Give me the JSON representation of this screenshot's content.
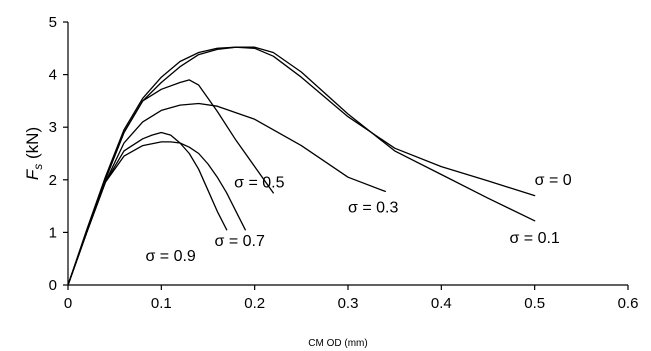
{
  "chart_data": {
    "type": "line",
    "title": "",
    "xlabel": "CM OD (mm)",
    "ylabel": "F",
    "ylabel_subscript": "s",
    "ylabel_unit": " (kN)",
    "xlim": [
      0,
      0.6
    ],
    "ylim": [
      0,
      5
    ],
    "xticks": [
      0,
      0.1,
      0.2,
      0.3,
      0.4,
      0.5,
      0.6
    ],
    "xtick_labels": [
      "0",
      "0.1",
      "0.2",
      "0.3",
      "0.4",
      "0.5",
      "0.6"
    ],
    "yticks": [
      0,
      1,
      2,
      3,
      4,
      5
    ],
    "ytick_labels": [
      "0",
      "1",
      "2",
      "3",
      "4",
      "5"
    ],
    "grid": false,
    "legend": "none",
    "color": "#000000",
    "series": [
      {
        "label": "σ = 0",
        "x": [
          0,
          0.02,
          0.04,
          0.06,
          0.08,
          0.1,
          0.12,
          0.14,
          0.16,
          0.18,
          0.2,
          0.22,
          0.25,
          0.3,
          0.35,
          0.4,
          0.45,
          0.5
        ],
        "y": [
          0,
          1.05,
          2.05,
          2.95,
          3.55,
          3.95,
          4.25,
          4.42,
          4.5,
          4.52,
          4.5,
          4.35,
          3.95,
          3.2,
          2.6,
          2.25,
          1.98,
          1.7
        ]
      },
      {
        "label": "σ = 0.1",
        "x": [
          0,
          0.02,
          0.04,
          0.06,
          0.08,
          0.1,
          0.12,
          0.14,
          0.16,
          0.18,
          0.2,
          0.22,
          0.25,
          0.3,
          0.35,
          0.4,
          0.45,
          0.5
        ],
        "y": [
          0,
          1.0,
          2.0,
          2.9,
          3.5,
          3.85,
          4.15,
          4.38,
          4.48,
          4.52,
          4.52,
          4.42,
          4.05,
          3.25,
          2.55,
          2.1,
          1.65,
          1.22
        ]
      },
      {
        "label": "σ = 0.3",
        "x": [
          0,
          0.02,
          0.04,
          0.06,
          0.08,
          0.1,
          0.12,
          0.14,
          0.16,
          0.2,
          0.25,
          0.3,
          0.34
        ],
        "y": [
          0,
          1.0,
          1.95,
          2.7,
          3.1,
          3.32,
          3.42,
          3.45,
          3.4,
          3.15,
          2.65,
          2.05,
          1.78
        ]
      },
      {
        "label": "σ = 0.5",
        "x": [
          0,
          0.02,
          0.04,
          0.06,
          0.08,
          0.1,
          0.12,
          0.13,
          0.14,
          0.16,
          0.18,
          0.2,
          0.22
        ],
        "y": [
          0,
          1.0,
          2.0,
          2.9,
          3.5,
          3.72,
          3.85,
          3.9,
          3.8,
          3.3,
          2.75,
          2.25,
          1.75
        ]
      },
      {
        "label": "σ = 0.7",
        "x": [
          0,
          0.02,
          0.04,
          0.06,
          0.08,
          0.09,
          0.1,
          0.11,
          0.12,
          0.13,
          0.14,
          0.15,
          0.16,
          0.17
        ],
        "y": [
          0,
          1.0,
          1.95,
          2.55,
          2.78,
          2.85,
          2.9,
          2.85,
          2.7,
          2.5,
          2.2,
          1.8,
          1.4,
          1.05
        ]
      },
      {
        "label": "σ = 0.9",
        "x": [
          0,
          0.02,
          0.04,
          0.06,
          0.08,
          0.1,
          0.11,
          0.12,
          0.13,
          0.14,
          0.15,
          0.16,
          0.17,
          0.18,
          0.19
        ],
        "y": [
          0,
          1.0,
          1.95,
          2.45,
          2.65,
          2.72,
          2.72,
          2.7,
          2.62,
          2.5,
          2.3,
          2.05,
          1.75,
          1.4,
          1.05
        ]
      }
    ],
    "annotations": [
      {
        "text": "σ = 0",
        "x": 0.5,
        "y": 1.9,
        "series": 0
      },
      {
        "text": "σ = 0.1",
        "x": 0.473,
        "y": 0.8,
        "series": 1
      },
      {
        "text": "σ = 0.3",
        "x": 0.3,
        "y": 1.38,
        "series": 2
      },
      {
        "text": "σ = 0.5",
        "x": 0.178,
        "y": 1.85,
        "series": 3
      },
      {
        "text": "σ = 0.7",
        "x": 0.157,
        "y": 0.74,
        "series": 4
      },
      {
        "text": "σ = 0.9",
        "x": 0.083,
        "y": 0.46,
        "series": 5
      }
    ]
  }
}
